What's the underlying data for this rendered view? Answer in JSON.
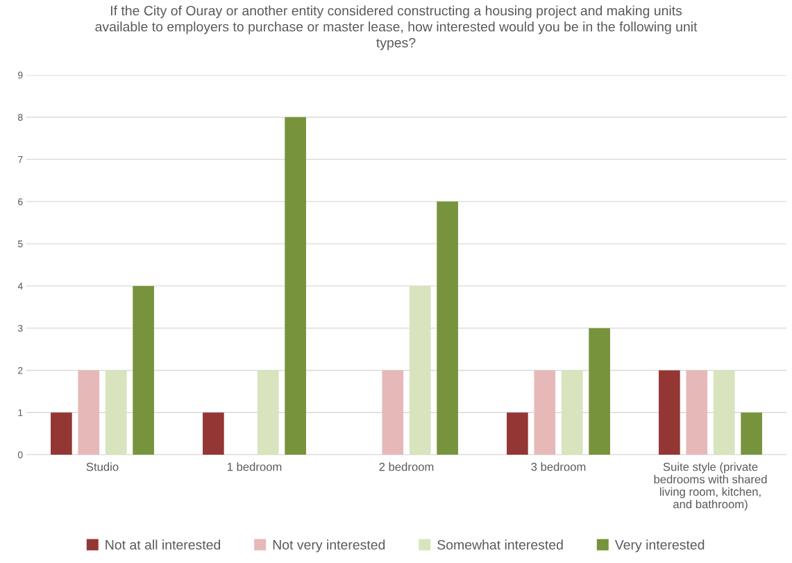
{
  "chart_data": {
    "type": "bar",
    "title": "If the City of Ouray or another entity considered constructing a housing project and making units available to employers to purchase or master lease, how interested would you be in the following unit types?",
    "categories": [
      "Studio",
      "1 bedroom",
      "2 bedroom",
      "3 bedroom",
      "Suite style (private bedrooms with shared living room, kitchen, and bathroom)"
    ],
    "series": [
      {
        "name": "Not at all interested",
        "color": "#943634",
        "values": [
          1,
          1,
          0,
          1,
          2
        ]
      },
      {
        "name": "Not very interested",
        "color": "#e6b9b8",
        "values": [
          2,
          0,
          2,
          2,
          2
        ]
      },
      {
        "name": "Somewhat interested",
        "color": "#d7e4bd",
        "values": [
          2,
          2,
          4,
          2,
          2
        ]
      },
      {
        "name": "Very interested",
        "color": "#77933c",
        "values": [
          4,
          8,
          6,
          3,
          1
        ]
      }
    ],
    "ylim": [
      0,
      9
    ],
    "yticks": [
      0,
      1,
      2,
      3,
      4,
      5,
      6,
      7,
      8,
      9
    ],
    "grid": "y",
    "legend": "bottom"
  }
}
